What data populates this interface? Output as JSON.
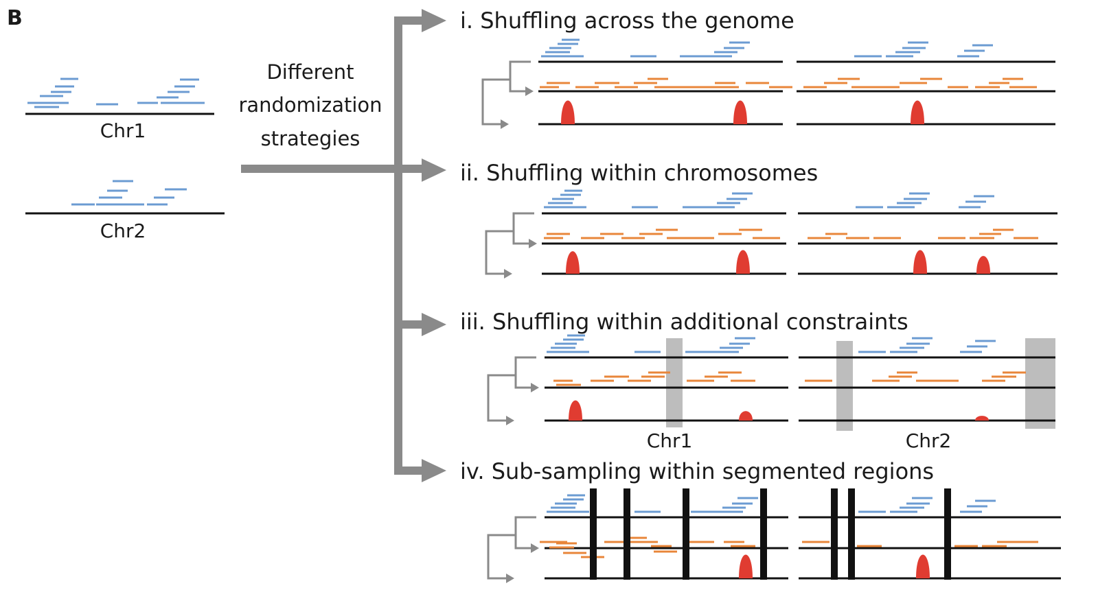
{
  "panel_label": "B",
  "left": {
    "chr1_label": "Chr1",
    "chr2_label": "Chr2",
    "caption_lines": [
      "Different",
      "randomization",
      "strategies"
    ]
  },
  "sections": [
    {
      "title": "i. Shuffling across the genome"
    },
    {
      "title": "ii. Shuffling within chromosomes"
    },
    {
      "title": "iii. Shuffling within additional constraints",
      "chr_labels": [
        "Chr1",
        "Chr2"
      ]
    },
    {
      "title": "iv. Sub-sampling within segmented regions"
    }
  ],
  "colors": {
    "blue_reads": "#6b9bd2",
    "orange_reads": "#e8863a",
    "peak": "#e03c31",
    "arrow": "#8a8a8a",
    "excluded_region": "#bdbdbd",
    "line": "#111111"
  }
}
